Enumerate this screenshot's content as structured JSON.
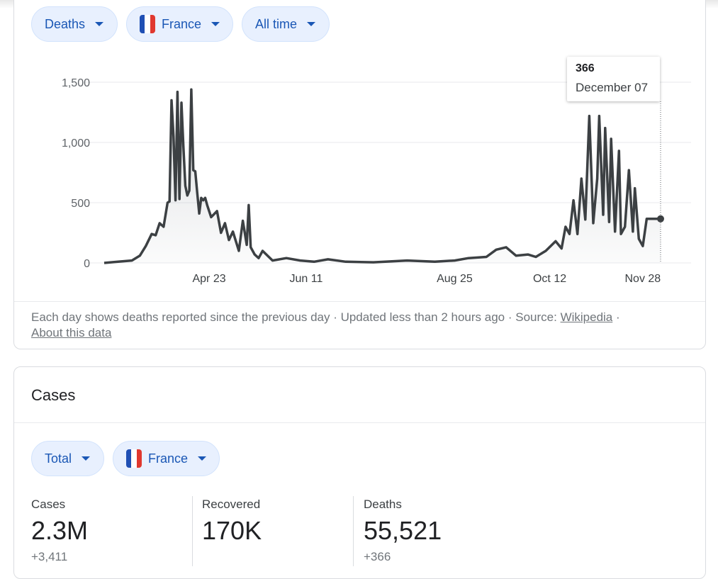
{
  "filters": {
    "metric": "Deaths",
    "country": "France",
    "range": "All time"
  },
  "tooltip": {
    "value": "366",
    "date": "December 07"
  },
  "footnote": {
    "text": "Each day shows deaths reported since the previous day · Updated less than 2 hours ago  ·  Source: ",
    "source_link": "Wikipedia",
    "about_link": "About this data"
  },
  "cases_card": {
    "title": "Cases",
    "filter_type": "Total",
    "filter_country": "France",
    "stats": [
      {
        "label": "Cases",
        "value": "2.3M",
        "delta": "+3,411"
      },
      {
        "label": "Recovered",
        "value": "170K",
        "delta": ""
      },
      {
        "label": "Deaths",
        "value": "55,521",
        "delta": "+366"
      }
    ]
  },
  "colors": {
    "line": "#3c4043",
    "chip_bg": "#e8f0fe",
    "chip_text": "#1a57b5"
  },
  "chart_data": {
    "type": "area",
    "x_start": "2020-03-01",
    "x_end": "2020-12-07",
    "ylim": [
      0,
      1500
    ],
    "yticks": [
      0,
      500,
      1000,
      1500
    ],
    "ytick_labels": [
      "0",
      "500",
      "1,000",
      "1,500"
    ],
    "xtick_labels": [
      "Apr 23",
      "Jun 11",
      "Aug 25",
      "Oct 12",
      "Nov 28"
    ],
    "xtick_dates": [
      "2020-04-23",
      "2020-06-11",
      "2020-08-25",
      "2020-10-12",
      "2020-11-28"
    ],
    "series": [
      {
        "dates": [
          "2020-03-01",
          "2020-03-08",
          "2020-03-15",
          "2020-03-19",
          "2020-03-22",
          "2020-03-25",
          "2020-03-27",
          "2020-03-29",
          "2020-03-31",
          "2020-04-02",
          "2020-04-03",
          "2020-04-04",
          "2020-04-05",
          "2020-04-06",
          "2020-04-07",
          "2020-04-08",
          "2020-04-09",
          "2020-04-10",
          "2020-04-11",
          "2020-04-12",
          "2020-04-13",
          "2020-04-14",
          "2020-04-15",
          "2020-04-16",
          "2020-04-17",
          "2020-04-18",
          "2020-04-19",
          "2020-04-20",
          "2020-04-21",
          "2020-04-22",
          "2020-04-24",
          "2020-04-27",
          "2020-04-29",
          "2020-05-01",
          "2020-05-03",
          "2020-05-05",
          "2020-05-08",
          "2020-05-10",
          "2020-05-12",
          "2020-05-13",
          "2020-05-14",
          "2020-05-16",
          "2020-05-18",
          "2020-05-20",
          "2020-05-25",
          "2020-06-01",
          "2020-06-08",
          "2020-06-15",
          "2020-06-22",
          "2020-07-01",
          "2020-07-15",
          "2020-08-01",
          "2020-08-15",
          "2020-08-25",
          "2020-09-01",
          "2020-09-10",
          "2020-09-15",
          "2020-09-20",
          "2020-09-25",
          "2020-10-01",
          "2020-10-05",
          "2020-10-10",
          "2020-10-15",
          "2020-10-18",
          "2020-10-20",
          "2020-10-22",
          "2020-10-24",
          "2020-10-26",
          "2020-10-28",
          "2020-10-30",
          "2020-11-01",
          "2020-11-03",
          "2020-11-05",
          "2020-11-06",
          "2020-11-08",
          "2020-11-09",
          "2020-11-11",
          "2020-11-12",
          "2020-11-14",
          "2020-11-16",
          "2020-11-17",
          "2020-11-19",
          "2020-11-21",
          "2020-11-23",
          "2020-11-24",
          "2020-11-26",
          "2020-11-28",
          "2020-11-30",
          "2020-12-01",
          "2020-12-03",
          "2020-12-05",
          "2020-12-06",
          "2020-12-07"
        ],
        "values": [
          0,
          10,
          20,
          60,
          140,
          240,
          230,
          330,
          300,
          500,
          510,
          1350,
          1050,
          520,
          1420,
          530,
          1330,
          970,
          640,
          560,
          600,
          1440,
          770,
          760,
          580,
          410,
          540,
          520,
          540,
          480,
          380,
          430,
          250,
          330,
          190,
          260,
          100,
          350,
          150,
          480,
          130,
          70,
          40,
          100,
          20,
          40,
          20,
          10,
          30,
          10,
          5,
          20,
          10,
          20,
          40,
          50,
          110,
          130,
          60,
          70,
          50,
          100,
          180,
          120,
          300,
          240,
          520,
          240,
          700,
          360,
          1220,
          330,
          700,
          1220,
          400,
          1120,
          340,
          1030,
          260,
          930,
          240,
          300,
          770,
          260,
          620,
          200,
          140,
          366,
          366,
          366,
          366,
          366,
          366
        ]
      }
    ]
  }
}
